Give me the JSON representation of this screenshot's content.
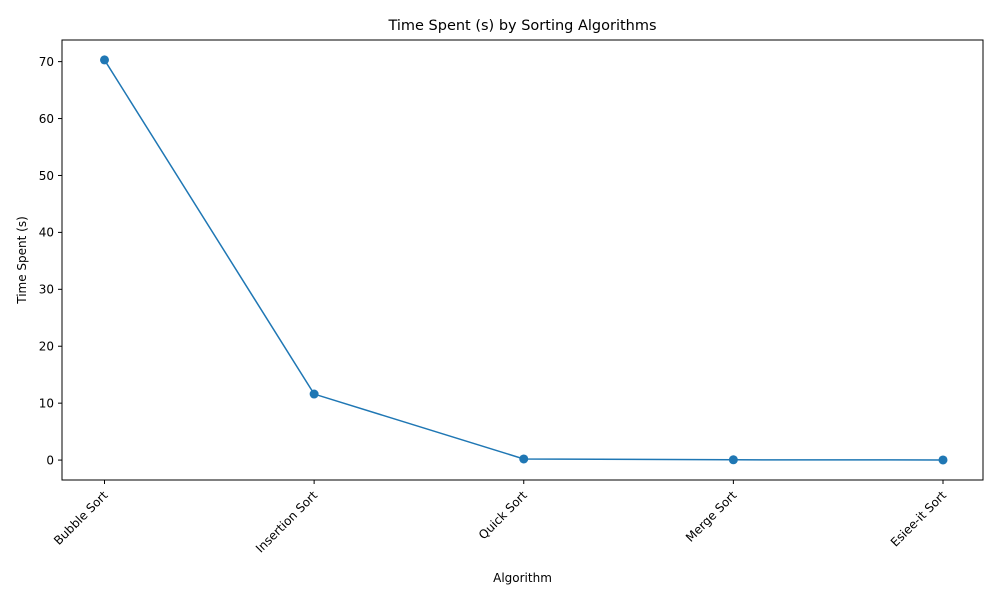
{
  "chart_data": {
    "type": "line",
    "title": "Time Spent (s) by Sorting Algorithms",
    "xlabel": "Algorithm",
    "ylabel": "Time Spent (s)",
    "categories": [
      "Bubble Sort",
      "Insertion Sort",
      "Quick Sort",
      "Merge Sort",
      "Esiee-it Sort"
    ],
    "series": [
      {
        "values": [
          70.3,
          11.6,
          0.2,
          0.05,
          0.02
        ],
        "color": "#1f77b4",
        "marker": "circle"
      }
    ],
    "ylim": [
      -3.5,
      73.8
    ],
    "yticks": [
      0,
      10,
      20,
      30,
      40,
      50,
      60,
      70
    ],
    "grid": false,
    "legend": "none",
    "xtick_rotation": 45
  }
}
